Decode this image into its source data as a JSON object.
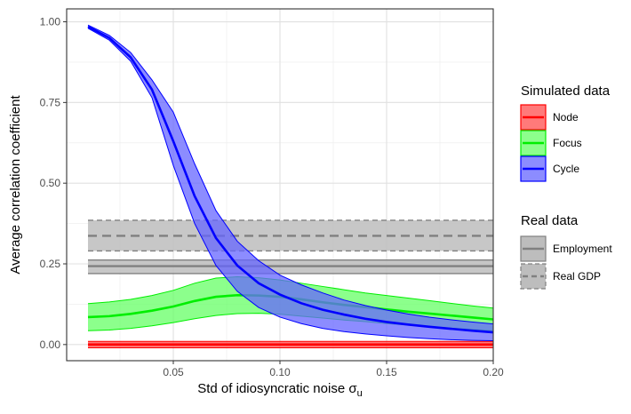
{
  "chart_data": {
    "type": "line",
    "title": "",
    "xlabel": "Std of idiosyncratic noise",
    "xlabel_symbol": "σ",
    "xlabel_subscript": "u",
    "ylabel": "Average correlation coefficient",
    "xlim": [
      0.0,
      0.2
    ],
    "ylim": [
      -0.05,
      1.04
    ],
    "x_ticks": [
      0.05,
      0.1,
      0.15,
      0.2
    ],
    "x_tick_labels": [
      "0.05",
      "0.10",
      "0.15",
      "0.20"
    ],
    "y_ticks": [
      0.0,
      0.25,
      0.5,
      0.75,
      1.0
    ],
    "y_tick_labels": [
      "0.00",
      "0.25",
      "0.50",
      "0.75",
      "1.00"
    ],
    "grid": true,
    "legend_position": "right",
    "simulated": [
      {
        "name": "Node",
        "color": "#ff0000",
        "fill": "#ff4d4d",
        "x": [
          0.01,
          0.05,
          0.1,
          0.15,
          0.2
        ],
        "mean": [
          0.0,
          0.0,
          0.0,
          0.0,
          0.0
        ],
        "lower": [
          -0.01,
          -0.01,
          -0.01,
          -0.01,
          -0.01
        ],
        "upper": [
          0.01,
          0.01,
          0.01,
          0.01,
          0.01
        ]
      },
      {
        "name": "Focus",
        "color": "#00ee00",
        "fill": "#66ff66",
        "x": [
          0.01,
          0.02,
          0.03,
          0.04,
          0.05,
          0.06,
          0.07,
          0.08,
          0.09,
          0.1,
          0.11,
          0.12,
          0.13,
          0.14,
          0.15,
          0.16,
          0.17,
          0.18,
          0.19,
          0.2
        ],
        "mean": [
          0.085,
          0.088,
          0.095,
          0.105,
          0.118,
          0.135,
          0.148,
          0.153,
          0.152,
          0.148,
          0.14,
          0.131,
          0.123,
          0.116,
          0.109,
          0.102,
          0.096,
          0.09,
          0.084,
          0.078
        ],
        "lower": [
          0.043,
          0.045,
          0.05,
          0.058,
          0.068,
          0.08,
          0.09,
          0.096,
          0.097,
          0.094,
          0.088,
          0.082,
          0.076,
          0.071,
          0.065,
          0.06,
          0.055,
          0.051,
          0.047,
          0.043
        ],
        "upper": [
          0.127,
          0.132,
          0.14,
          0.152,
          0.168,
          0.19,
          0.206,
          0.21,
          0.207,
          0.2,
          0.19,
          0.18,
          0.17,
          0.16,
          0.152,
          0.144,
          0.136,
          0.128,
          0.12,
          0.113
        ]
      },
      {
        "name": "Cycle",
        "color": "#0000ff",
        "fill": "#6666ff",
        "x": [
          0.01,
          0.02,
          0.03,
          0.04,
          0.05,
          0.06,
          0.07,
          0.08,
          0.09,
          0.1,
          0.11,
          0.12,
          0.13,
          0.14,
          0.15,
          0.16,
          0.17,
          0.18,
          0.19,
          0.2
        ],
        "mean": [
          0.985,
          0.95,
          0.89,
          0.79,
          0.63,
          0.46,
          0.33,
          0.245,
          0.19,
          0.155,
          0.128,
          0.108,
          0.093,
          0.08,
          0.07,
          0.062,
          0.055,
          0.049,
          0.043,
          0.038
        ],
        "lower": [
          0.98,
          0.943,
          0.878,
          0.765,
          0.555,
          0.375,
          0.245,
          0.165,
          0.115,
          0.085,
          0.065,
          0.05,
          0.04,
          0.033,
          0.027,
          0.022,
          0.018,
          0.015,
          0.013,
          0.012
        ],
        "upper": [
          0.99,
          0.958,
          0.905,
          0.82,
          0.72,
          0.56,
          0.415,
          0.32,
          0.26,
          0.215,
          0.185,
          0.16,
          0.138,
          0.121,
          0.107,
          0.095,
          0.085,
          0.077,
          0.07,
          0.064
        ]
      }
    ],
    "real": [
      {
        "name": "Employment",
        "value": 0.243,
        "lower": 0.22,
        "upper": 0.262,
        "linetype": "solid",
        "color": "#808080",
        "fill": "#bdbdbd",
        "x_range": [
          0.01,
          0.2
        ]
      },
      {
        "name": "Real GDP",
        "value": 0.337,
        "lower": 0.29,
        "upper": 0.385,
        "linetype": "dashed",
        "color": "#808080",
        "fill": "#bdbdbd",
        "x_range": [
          0.01,
          0.2
        ]
      }
    ],
    "legend": {
      "simulated_title": "Simulated data",
      "real_title": "Real data"
    }
  }
}
